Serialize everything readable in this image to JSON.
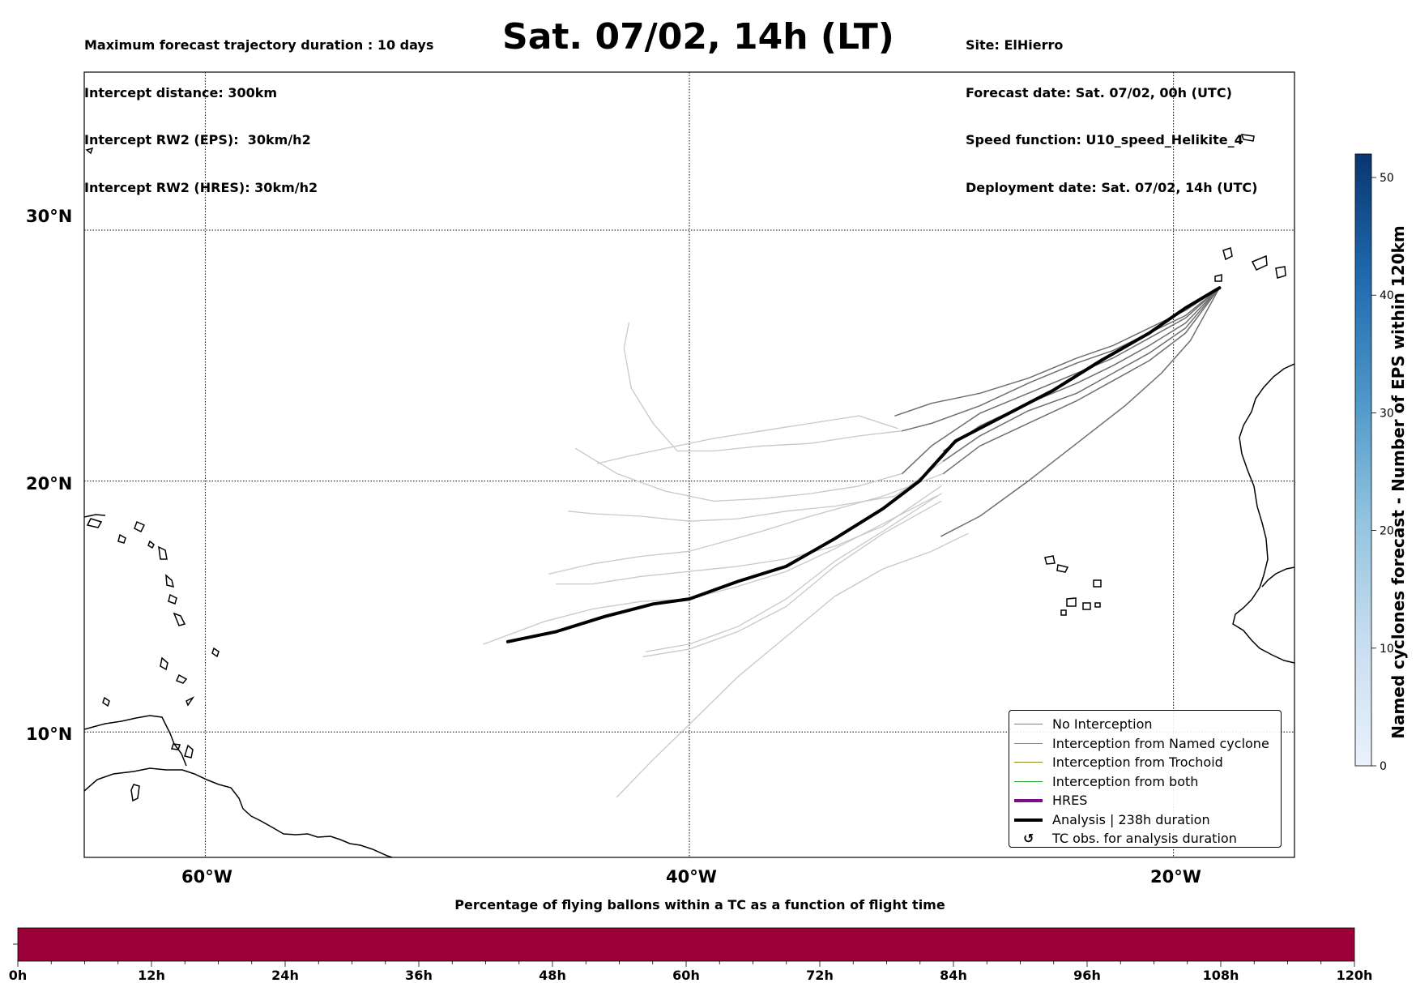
{
  "header": {
    "left_lines": [
      "Maximum forecast trajectory duration : 10 days",
      "Intercept distance: 300km",
      "Intercept RW2 (EPS):  30km/h2",
      "Intercept RW2 (HRES): 30km/h2"
    ],
    "title": "Sat. 07/02, 14h (LT)",
    "right_lines": [
      "Site: ElHierro",
      "Forecast date: Sat. 07/02, 00h (UTC)",
      "Speed function: U10_speed_Helikite_4",
      "Deployment date: Sat. 07/02, 14h (UTC)"
    ]
  },
  "map": {
    "lat_labels": [
      "30°N",
      "20°N",
      "10°N"
    ],
    "lon_labels": [
      "60°W",
      "40°W",
      "20°W"
    ],
    "lon_range": [
      -65,
      -15
    ],
    "lat_range": [
      5,
      36.3
    ],
    "gridlines": true
  },
  "legend": {
    "items": [
      {
        "label": "No Interception",
        "color": "#808080",
        "style": "thin"
      },
      {
        "label": "Interception from Named cyclone",
        "color": "#e8603c",
        "style": "thin"
      },
      {
        "label": "Interception from Trochoid",
        "color": "#8a8a1e",
        "style": "thin"
      },
      {
        "label": "Interception from both",
        "color": "#2ca02c",
        "style": "thin"
      },
      {
        "label": "HRES",
        "color": "#7b0f85",
        "style": "thick"
      },
      {
        "label": "Analysis | 238h duration",
        "color": "#000000",
        "style": "thick"
      },
      {
        "label": "TC obs. for analysis duration",
        "symbol": "↺",
        "style": "symbol"
      }
    ]
  },
  "colorbar": {
    "label": "Named cyclones forecast - Number of EPS within 120km",
    "ticks": [
      "0",
      "10",
      "20",
      "30",
      "40",
      "50"
    ],
    "range": [
      0,
      52
    ],
    "color_low": "#e8f1fa",
    "color_high": "#0a3570"
  },
  "bottom_bar": {
    "title": "Percentage of flying ballons within a TC as a function of flight time",
    "ticks": [
      "0h",
      "12h",
      "24h",
      "36h",
      "48h",
      "60h",
      "72h",
      "84h",
      "96h",
      "108h",
      "120h"
    ],
    "fill_color": "#9b0039"
  },
  "chart_data": {
    "type": "line",
    "x_unit": "longitude (deg, negative = W)",
    "y_unit": "latitude (deg N)",
    "series": [
      {
        "kind": "analysis",
        "color": "#000000",
        "points": [
          [
            -47.5,
            13.6
          ],
          [
            -45.5,
            14.0
          ],
          [
            -43.5,
            14.6
          ],
          [
            -41.5,
            15.1
          ],
          [
            -40,
            15.3
          ],
          [
            -38,
            16.0
          ],
          [
            -36,
            16.6
          ],
          [
            -34,
            17.7
          ],
          [
            -32,
            18.9
          ],
          [
            -30.5,
            20.0
          ],
          [
            -29,
            21.6
          ],
          [
            -27,
            22.6
          ],
          [
            -25,
            23.6
          ],
          [
            -23,
            24.8
          ],
          [
            -21,
            25.9
          ],
          [
            -19.5,
            26.9
          ],
          [
            -18.1,
            27.7
          ]
        ]
      },
      {
        "kind": "eps-dark",
        "color": "#6e6e6e",
        "points": [
          [
            -18.1,
            27.7
          ],
          [
            -19.5,
            26.8
          ],
          [
            -21,
            26.1
          ],
          [
            -22.5,
            25.4
          ],
          [
            -24,
            24.9
          ],
          [
            -26,
            24.1
          ],
          [
            -28,
            23.5
          ],
          [
            -30,
            23.1
          ],
          [
            -31.5,
            22.6
          ]
        ]
      },
      {
        "kind": "eps-dark",
        "color": "#6e6e6e",
        "points": [
          [
            -18.1,
            27.7
          ],
          [
            -19.5,
            26.6
          ],
          [
            -21,
            25.9
          ],
          [
            -22.5,
            25.2
          ],
          [
            -24,
            24.7
          ],
          [
            -26,
            23.9
          ],
          [
            -28,
            23.0
          ],
          [
            -30,
            22.3
          ],
          [
            -31.2,
            22.0
          ]
        ]
      },
      {
        "kind": "eps-dark",
        "color": "#6e6e6e",
        "points": [
          [
            -18.1,
            27.7
          ],
          [
            -19.5,
            26.5
          ],
          [
            -21,
            25.7
          ],
          [
            -22.5,
            24.9
          ],
          [
            -24,
            24.3
          ],
          [
            -26,
            23.5
          ],
          [
            -28,
            22.7
          ],
          [
            -30,
            21.4
          ],
          [
            -31.2,
            20.3
          ]
        ]
      },
      {
        "kind": "eps-dark",
        "color": "#6e6e6e",
        "points": [
          [
            -18.1,
            27.7
          ],
          [
            -19.5,
            26.3
          ],
          [
            -21,
            25.4
          ],
          [
            -22.5,
            24.6
          ],
          [
            -24,
            23.9
          ],
          [
            -26,
            23.1
          ],
          [
            -28,
            22.2
          ],
          [
            -29.5,
            21.2
          ]
        ]
      },
      {
        "kind": "eps-dark",
        "color": "#6e6e6e",
        "points": [
          [
            -18.1,
            27.7
          ],
          [
            -19.5,
            26.1
          ],
          [
            -21,
            25.1
          ],
          [
            -22.5,
            24.3
          ],
          [
            -24,
            23.5
          ],
          [
            -26,
            22.8
          ],
          [
            -28,
            21.8
          ],
          [
            -29.5,
            20.8
          ]
        ]
      },
      {
        "kind": "eps-dark",
        "color": "#6e6e6e",
        "points": [
          [
            -18.1,
            27.7
          ],
          [
            -19.5,
            25.9
          ],
          [
            -21,
            24.8
          ],
          [
            -22.5,
            24.0
          ],
          [
            -24,
            23.2
          ],
          [
            -26,
            22.3
          ],
          [
            -28,
            21.4
          ],
          [
            -29.5,
            20.3
          ]
        ]
      },
      {
        "kind": "eps-dark",
        "color": "#6e6e6e",
        "points": [
          [
            -18.1,
            27.7
          ],
          [
            -19.3,
            25.6
          ],
          [
            -20.5,
            24.3
          ],
          [
            -22,
            23.0
          ],
          [
            -24,
            21.5
          ],
          [
            -26,
            20.0
          ],
          [
            -28,
            18.6
          ],
          [
            -29.6,
            17.8
          ]
        ]
      },
      {
        "kind": "eps-light",
        "color": "#c8c8c8",
        "points": [
          [
            -31.4,
            22.1
          ],
          [
            -33,
            22.6
          ],
          [
            -35,
            22.3
          ],
          [
            -37,
            22.0
          ],
          [
            -39,
            21.7
          ],
          [
            -41,
            21.3
          ],
          [
            -42.5,
            21.0
          ],
          [
            -43.8,
            20.7
          ]
        ]
      },
      {
        "kind": "eps-light",
        "color": "#c8c8c8",
        "points": [
          [
            -31.2,
            22.0
          ],
          [
            -33,
            21.8
          ],
          [
            -35,
            21.5
          ],
          [
            -37,
            21.4
          ],
          [
            -39,
            21.2
          ],
          [
            -40.5,
            21.2
          ],
          [
            -41.5,
            22.3
          ],
          [
            -42.4,
            23.7
          ],
          [
            -42.7,
            25.3
          ],
          [
            -42.5,
            26.3
          ]
        ]
      },
      {
        "kind": "eps-light",
        "color": "#c8c8c8",
        "points": [
          [
            -29.5,
            20.8
          ],
          [
            -31.5,
            19.4
          ],
          [
            -34,
            19.0
          ],
          [
            -36,
            18.8
          ],
          [
            -38,
            18.5
          ],
          [
            -40,
            18.4
          ],
          [
            -42,
            18.6
          ],
          [
            -44,
            18.7
          ],
          [
            -45,
            18.8
          ]
        ]
      },
      {
        "kind": "eps-light",
        "color": "#c8c8c8",
        "points": [
          [
            -29.5,
            20.3
          ],
          [
            -32,
            19.4
          ],
          [
            -35,
            18.6
          ],
          [
            -37,
            18.0
          ],
          [
            -40,
            17.2
          ],
          [
            -42,
            17.0
          ],
          [
            -44,
            16.7
          ],
          [
            -45.8,
            16.3
          ]
        ]
      },
      {
        "kind": "eps-light",
        "color": "#c8c8c8",
        "points": [
          [
            -31.2,
            20.3
          ],
          [
            -33,
            19.8
          ],
          [
            -35,
            19.5
          ],
          [
            -37,
            19.3
          ],
          [
            -39,
            19.2
          ],
          [
            -41,
            19.6
          ],
          [
            -43,
            20.3
          ],
          [
            -44.7,
            21.3
          ]
        ]
      },
      {
        "kind": "eps-light",
        "color": "#c8c8c8",
        "points": [
          [
            -29.6,
            19.8
          ],
          [
            -32,
            18.2
          ],
          [
            -34,
            17.4
          ],
          [
            -36,
            16.9
          ],
          [
            -38,
            16.6
          ],
          [
            -40,
            16.4
          ],
          [
            -42,
            16.2
          ],
          [
            -44,
            15.9
          ],
          [
            -45.5,
            15.9
          ]
        ]
      },
      {
        "kind": "eps-light",
        "color": "#c8c8c8",
        "points": [
          [
            -29.6,
            19.5
          ],
          [
            -32,
            18.0
          ],
          [
            -34,
            16.8
          ],
          [
            -36,
            15.3
          ],
          [
            -38,
            14.2
          ],
          [
            -40,
            13.5
          ],
          [
            -41.8,
            13.2
          ]
        ]
      },
      {
        "kind": "eps-light",
        "color": "#c8c8c8",
        "points": [
          [
            -29.6,
            19.2
          ],
          [
            -32,
            17.9
          ],
          [
            -34,
            16.6
          ],
          [
            -36,
            15.0
          ],
          [
            -38,
            14.0
          ],
          [
            -40,
            13.3
          ],
          [
            -41.9,
            13.0
          ]
        ]
      },
      {
        "kind": "eps-light",
        "color": "#c8c8c8",
        "points": [
          [
            -29.8,
            19.4
          ],
          [
            -32,
            18.3
          ],
          [
            -34,
            17.3
          ],
          [
            -36,
            16.4
          ],
          [
            -38,
            15.8
          ],
          [
            -40,
            15.3
          ],
          [
            -42,
            15.2
          ],
          [
            -44,
            14.9
          ],
          [
            -46,
            14.4
          ],
          [
            -48.5,
            13.5
          ]
        ]
      },
      {
        "kind": "eps-light",
        "color": "#c8c8c8",
        "points": [
          [
            -28.5,
            17.9
          ],
          [
            -30,
            17.2
          ],
          [
            -32,
            16.5
          ],
          [
            -34,
            15.4
          ],
          [
            -36,
            13.8
          ],
          [
            -38,
            12.2
          ],
          [
            -40,
            10.3
          ],
          [
            -41.5,
            8.9
          ],
          [
            -43,
            7.4
          ]
        ]
      }
    ]
  }
}
